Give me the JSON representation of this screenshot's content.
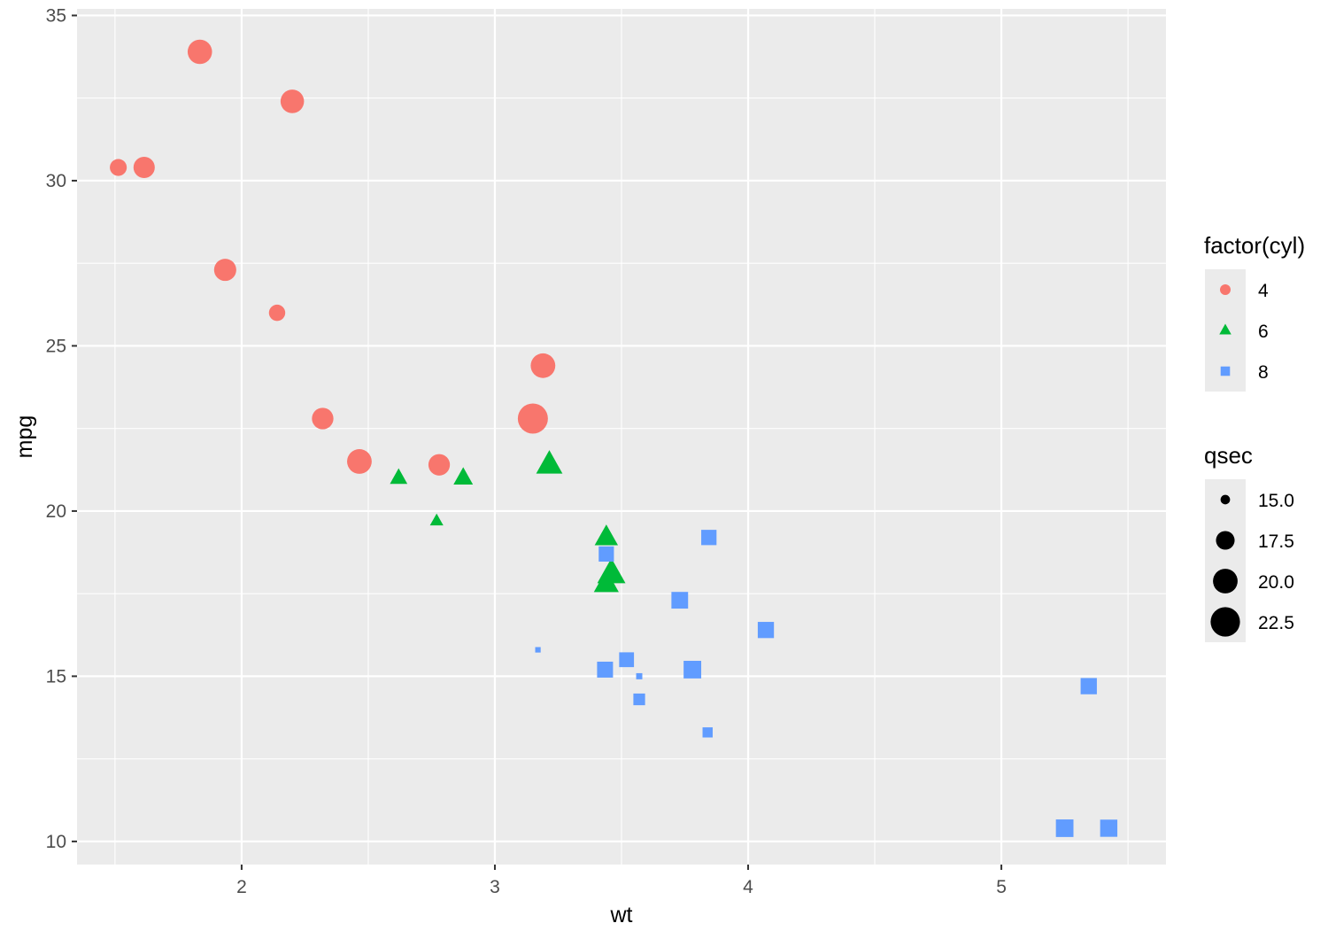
{
  "chart_data": {
    "type": "scatter",
    "xlabel": "wt",
    "ylabel": "mpg",
    "xlim": [
      1.35,
      5.65
    ],
    "ylim": [
      9.3,
      35.2
    ],
    "x_ticks": [
      2,
      3,
      4,
      5
    ],
    "y_ticks": [
      10,
      15,
      20,
      25,
      30,
      35
    ],
    "x_tick_labels": [
      "2",
      "3",
      "4",
      "5"
    ],
    "y_tick_labels": [
      "10",
      "15",
      "20",
      "25",
      "30",
      "35"
    ],
    "grid": true,
    "legend_position": "right",
    "color_legend": {
      "title": "factor(cyl)",
      "entries": [
        {
          "label": "4",
          "color": "#F8766D",
          "shape": "circle"
        },
        {
          "label": "6",
          "color": "#00BA38",
          "shape": "triangle"
        },
        {
          "label": "8",
          "color": "#619CFF",
          "shape": "square"
        }
      ]
    },
    "size_legend": {
      "title": "qsec",
      "entries": [
        "15.0",
        "17.5",
        "20.0",
        "22.5"
      ],
      "values": [
        15.0,
        17.5,
        20.0,
        22.5
      ]
    },
    "series": [
      {
        "name": "4",
        "points": [
          {
            "x": 2.32,
            "y": 22.8,
            "qsec": 18.61
          },
          {
            "x": 3.19,
            "y": 24.4,
            "qsec": 20.0
          },
          {
            "x": 3.15,
            "y": 22.8,
            "qsec": 22.9
          },
          {
            "x": 2.2,
            "y": 32.4,
            "qsec": 19.47
          },
          {
            "x": 1.615,
            "y": 30.4,
            "qsec": 18.52
          },
          {
            "x": 1.835,
            "y": 33.9,
            "qsec": 19.9
          },
          {
            "x": 2.465,
            "y": 21.5,
            "qsec": 20.01
          },
          {
            "x": 1.935,
            "y": 27.3,
            "qsec": 18.9
          },
          {
            "x": 2.14,
            "y": 26.0,
            "qsec": 16.7
          },
          {
            "x": 1.513,
            "y": 30.4,
            "qsec": 16.9
          },
          {
            "x": 2.78,
            "y": 21.4,
            "qsec": 18.6
          }
        ]
      },
      {
        "name": "6",
        "points": [
          {
            "x": 2.62,
            "y": 21.0,
            "qsec": 16.46
          },
          {
            "x": 2.875,
            "y": 21.0,
            "qsec": 17.02
          },
          {
            "x": 3.215,
            "y": 21.4,
            "qsec": 19.44
          },
          {
            "x": 3.46,
            "y": 18.1,
            "qsec": 20.22
          },
          {
            "x": 3.44,
            "y": 19.2,
            "qsec": 18.3
          },
          {
            "x": 3.44,
            "y": 17.8,
            "qsec": 18.9
          },
          {
            "x": 2.77,
            "y": 19.7,
            "qsec": 15.5
          }
        ]
      },
      {
        "name": "8",
        "points": [
          {
            "x": 3.44,
            "y": 18.7,
            "qsec": 17.02
          },
          {
            "x": 3.57,
            "y": 14.3,
            "qsec": 15.84
          },
          {
            "x": 4.07,
            "y": 16.4,
            "qsec": 17.4
          },
          {
            "x": 3.73,
            "y": 17.3,
            "qsec": 17.6
          },
          {
            "x": 3.78,
            "y": 15.2,
            "qsec": 18.0
          },
          {
            "x": 5.25,
            "y": 10.4,
            "qsec": 17.98
          },
          {
            "x": 5.424,
            "y": 10.4,
            "qsec": 17.82
          },
          {
            "x": 5.345,
            "y": 14.7,
            "qsec": 17.42
          },
          {
            "x": 3.52,
            "y": 15.5,
            "qsec": 16.87
          },
          {
            "x": 3.435,
            "y": 15.2,
            "qsec": 17.3
          },
          {
            "x": 3.84,
            "y": 13.3,
            "qsec": 15.41
          },
          {
            "x": 3.845,
            "y": 19.2,
            "qsec": 17.05
          },
          {
            "x": 3.17,
            "y": 15.8,
            "qsec": 14.5
          },
          {
            "x": 3.57,
            "y": 15.0,
            "qsec": 14.6
          }
        ]
      }
    ]
  }
}
